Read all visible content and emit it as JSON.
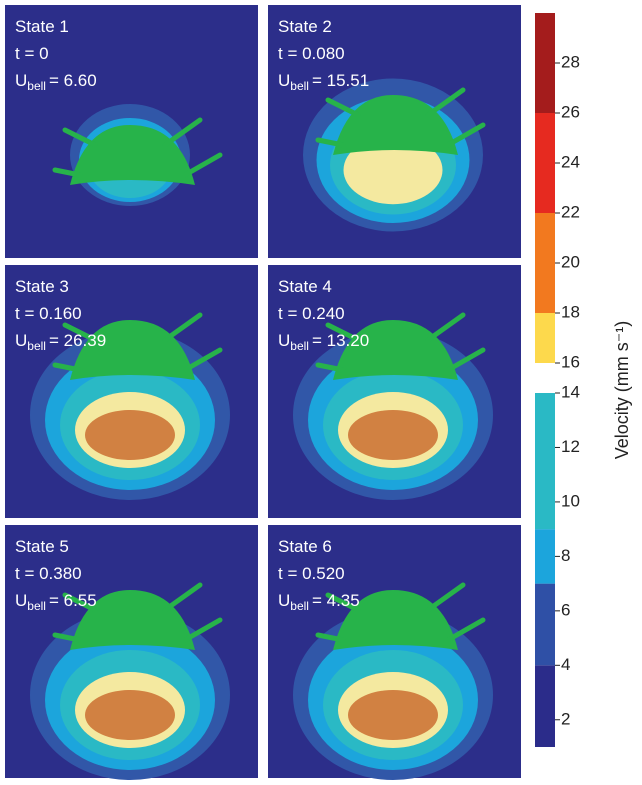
{
  "panels": [
    {
      "state": "State 1",
      "time": "t = 0",
      "u_symbol": "U",
      "u_subscript": "bell",
      "u_value": "= 6.60"
    },
    {
      "state": "State 2",
      "time": "t = 0.080",
      "u_symbol": "U",
      "u_subscript": "bell",
      "u_value": "= 15.51"
    },
    {
      "state": "State 3",
      "time": "t = 0.160",
      "u_symbol": "U",
      "u_subscript": "bell",
      "u_value": "= 26.39"
    },
    {
      "state": "State 4",
      "time": "t = 0.240",
      "u_symbol": "U",
      "u_subscript": "bell",
      "u_value": "= 13.20"
    },
    {
      "state": "State 5",
      "time": "t = 0.380",
      "u_symbol": "U",
      "u_subscript": "bell",
      "u_value": "= 6.55"
    },
    {
      "state": "State 6",
      "time": "t = 0.520",
      "u_symbol": "U",
      "u_subscript": "bell",
      "u_value": "= 4.35"
    }
  ],
  "colorbar": {
    "label": "Velocity (mm s⁻¹)",
    "upper": {
      "lim": [
        16,
        30
      ],
      "ticks": [
        16,
        18,
        20,
        22,
        24,
        26,
        28
      ],
      "bands": [
        {
          "from": 16,
          "to": 18,
          "color": "#fdd94c"
        },
        {
          "from": 18,
          "to": 22,
          "color": "#f2791f"
        },
        {
          "from": 22,
          "to": 26,
          "color": "#e62a20"
        },
        {
          "from": 26,
          "to": 30,
          "color": "#a41c1c"
        }
      ]
    },
    "lower": {
      "lim": [
        1,
        14
      ],
      "ticks": [
        2,
        4,
        6,
        8,
        10,
        12,
        14
      ],
      "bands": [
        {
          "from": 1,
          "to": 4,
          "color": "#2b2c8a"
        },
        {
          "from": 4,
          "to": 7,
          "color": "#2f50a6"
        },
        {
          "from": 7,
          "to": 9,
          "color": "#1ca5dc"
        },
        {
          "from": 9,
          "to": 14,
          "color": "#2ab9c5"
        }
      ]
    }
  }
}
